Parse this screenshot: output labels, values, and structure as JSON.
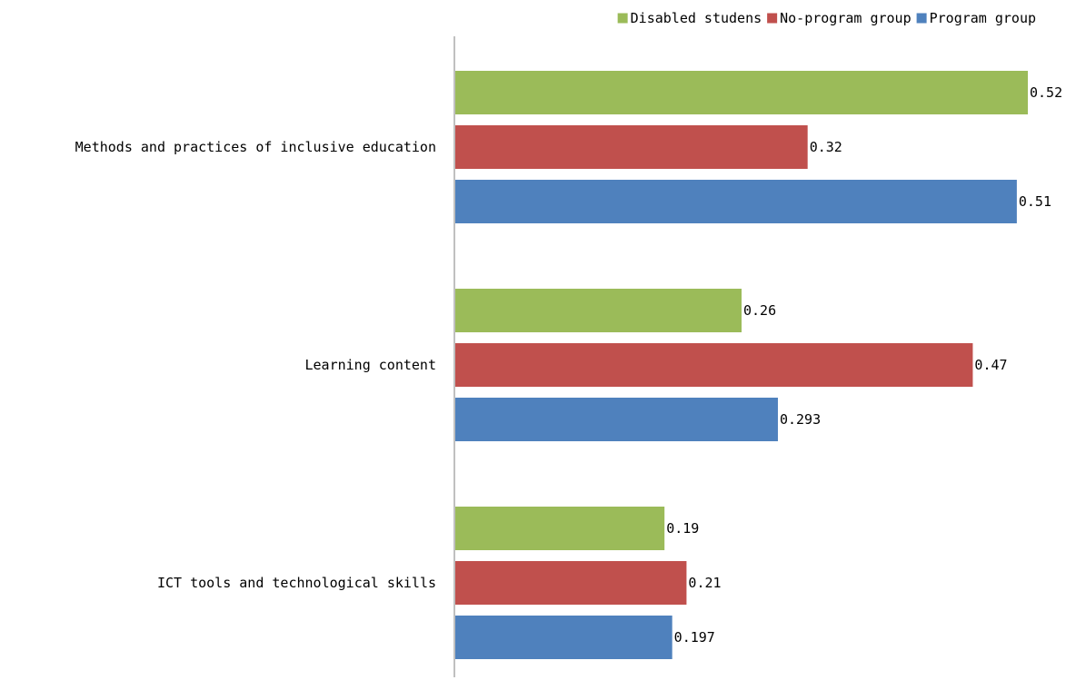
{
  "chart_data": {
    "type": "bar",
    "orientation": "horizontal",
    "categories": [
      "Methods and practices of inclusive education",
      "Learning content",
      "ICT tools and technological skills"
    ],
    "series": [
      {
        "name": "Disabled studens",
        "color": "#9BBB59",
        "values": [
          0.52,
          0.26,
          0.19
        ],
        "labels": [
          "0.52",
          "0.26",
          "0.19"
        ]
      },
      {
        "name": "No-program group",
        "color": "#C0504D",
        "values": [
          0.32,
          0.47,
          0.21
        ],
        "labels": [
          "0.32",
          "0.47",
          "0.21"
        ]
      },
      {
        "name": "Program group",
        "color": "#4F81BD",
        "values": [
          0.51,
          0.293,
          0.197
        ],
        "labels": [
          "0.51",
          "0.293",
          "0.197"
        ]
      }
    ],
    "xlim": [
      0,
      0.52
    ],
    "legend": "top-right",
    "grid": false,
    "axis_color": "#808080"
  }
}
